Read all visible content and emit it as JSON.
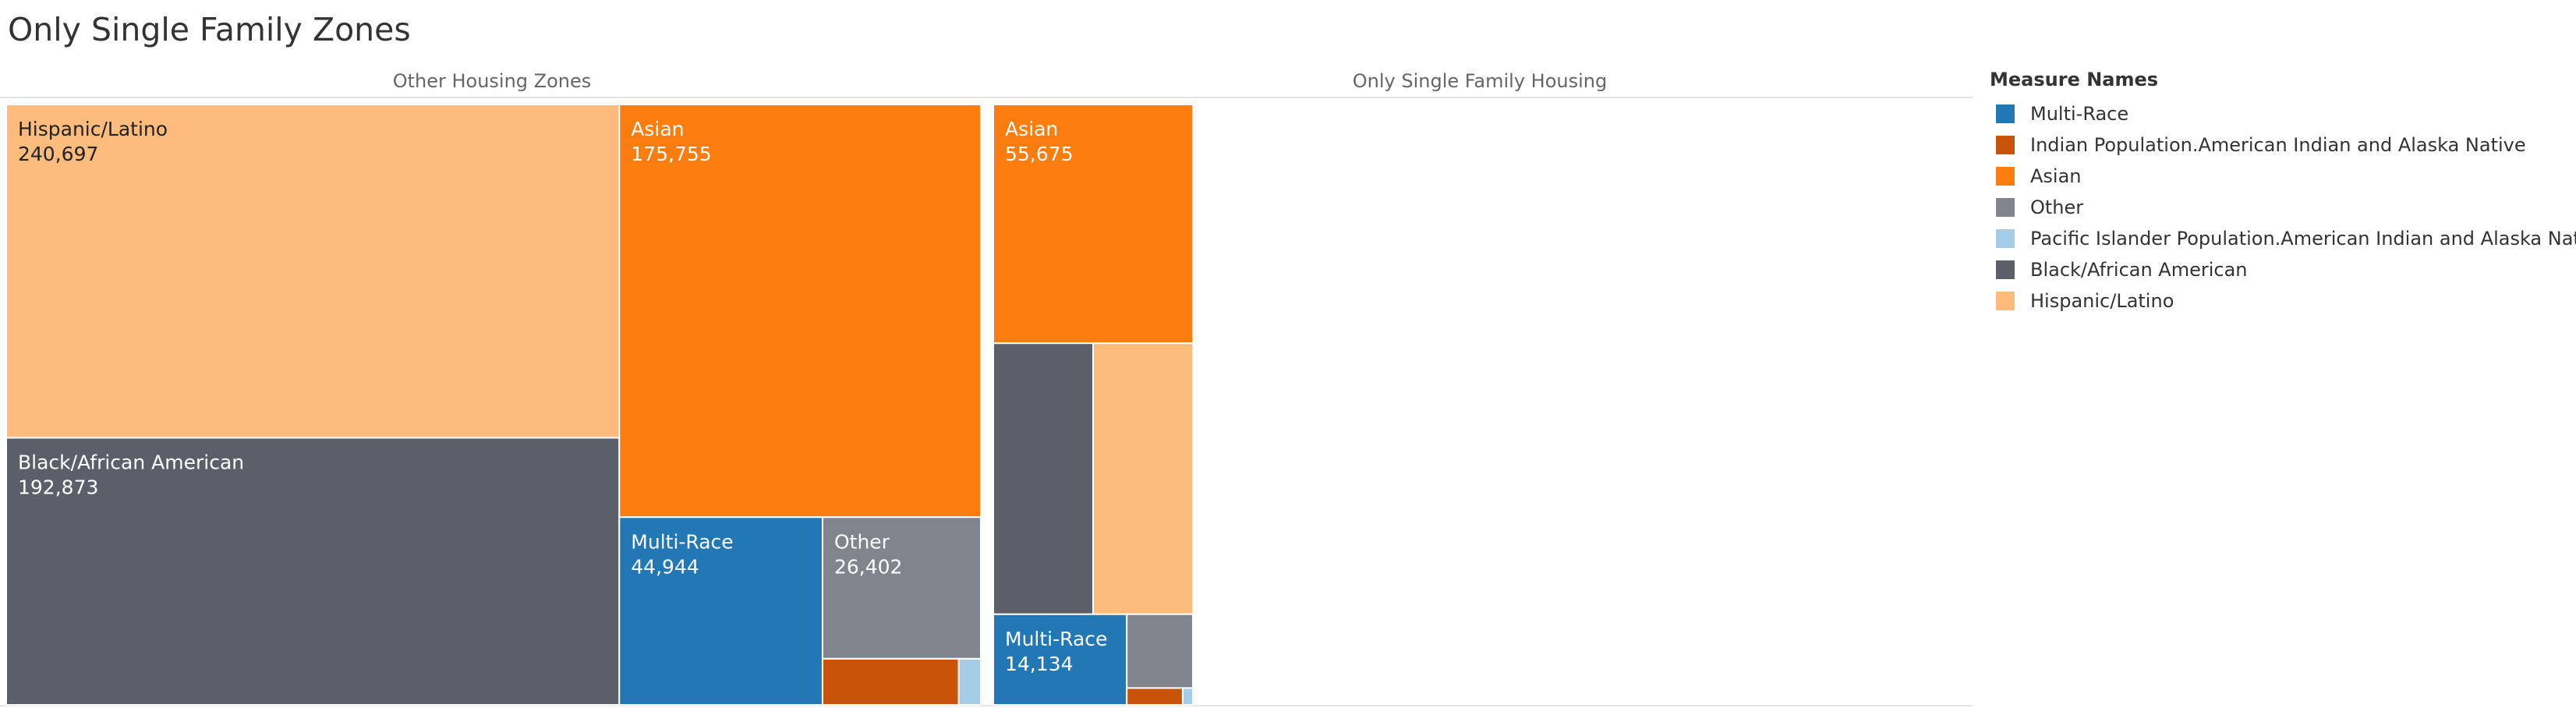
{
  "title": "Only Single Family Zones",
  "colors": {
    "Multi-Race": "#2277b5",
    "Indian Population.American Indian and Alaska Native": "#c95309",
    "Asian": "#fa7d0d",
    "Other": "#7f848d",
    "Pacific Islander Population.American Indian and Alaska Native": "#a5cde8",
    "Black/African American": "#5a5f6a",
    "Hispanic/Latino": "#fdbc7c"
  },
  "legend": {
    "title": "Measure Names",
    "items": [
      {
        "label": "Multi-Race",
        "color": "#2277b5"
      },
      {
        "label": "Indian Population.American Indian and Alaska Native",
        "color": "#c95309"
      },
      {
        "label": "Asian",
        "color": "#fa7d0d"
      },
      {
        "label": "Other",
        "color": "#7f848d"
      },
      {
        "label": "Pacific Islander Population.American Indian and Alaska Native",
        "color": "#a5cde8"
      },
      {
        "label": "Black/African American",
        "color": "#5a5f6a"
      },
      {
        "label": "Hispanic/Latino",
        "color": "#fdbc7c"
      }
    ]
  },
  "chart_data": {
    "type": "treemap",
    "title": "Only Single Family Zones",
    "legend_position": "right",
    "panels": [
      {
        "name": "Other Housing Zones",
        "items": [
          {
            "category": "Hispanic/Latino",
            "value": 240697,
            "label": "240,697"
          },
          {
            "category": "Black/African American",
            "value": 192873,
            "label": "192,873"
          },
          {
            "category": "Asian",
            "value": 175755,
            "label": "175,755"
          },
          {
            "category": "Multi-Race",
            "value": 44944,
            "label": "44,944"
          },
          {
            "category": "Other",
            "value": 26402,
            "label": "26,402"
          },
          {
            "category": "Indian Population.American Indian and Alaska Native",
            "value": 7400
          },
          {
            "category": "Pacific Islander Population.American Indian and Alaska Native",
            "value": 1200
          }
        ]
      },
      {
        "name": "Only Single Family Housing",
        "items": [
          {
            "category": "Asian",
            "value": 55675,
            "label": "55,675"
          },
          {
            "category": "Black/African American",
            "value": 31600
          },
          {
            "category": "Hispanic/Latino",
            "value": 31600
          },
          {
            "category": "Multi-Race",
            "value": 14134,
            "label": "14,134"
          },
          {
            "category": "Other",
            "value": 5700
          },
          {
            "category": "Indian Population.American Indian and Alaska Native",
            "value": 1100
          },
          {
            "category": "Pacific Islander Population.American Indian and Alaska Native",
            "value": 200
          }
        ]
      }
    ]
  }
}
